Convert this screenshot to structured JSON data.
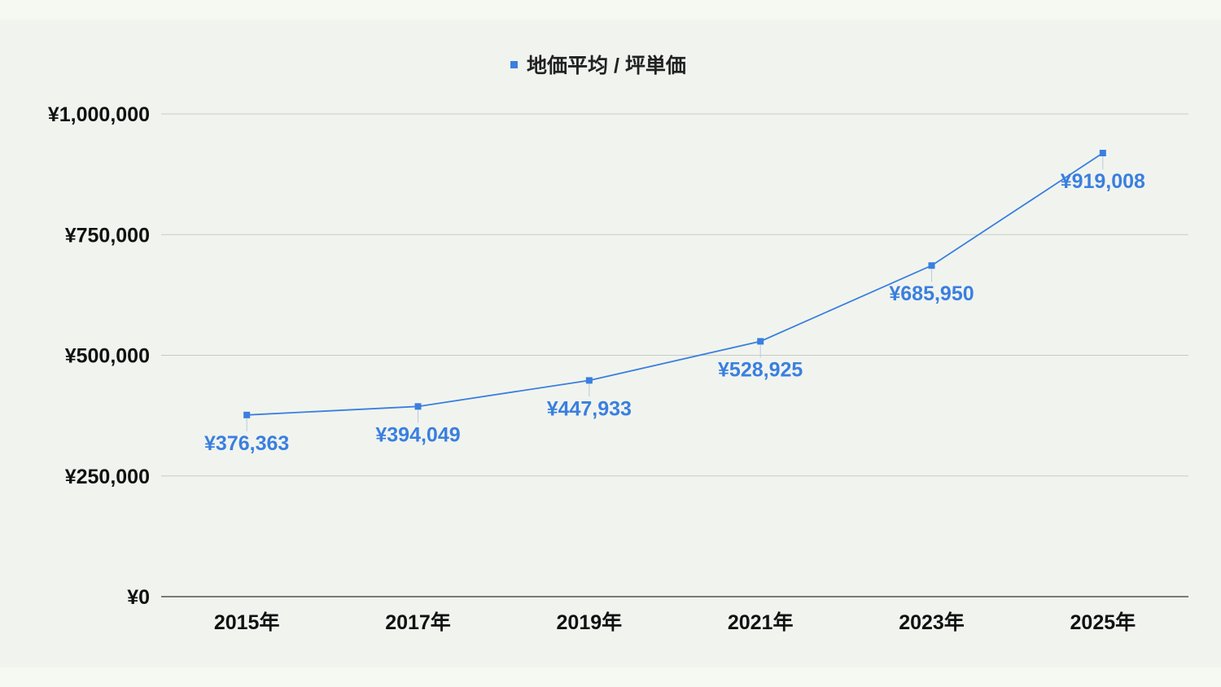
{
  "colors": {
    "series": "#3a7fe0",
    "grid": "#c8cbc4",
    "axis": "#333333"
  },
  "chart_data": {
    "type": "line",
    "legend": {
      "position": "top",
      "entries": [
        "地価平均 / 坪単価"
      ]
    },
    "x": [
      "2015年",
      "2017年",
      "2019年",
      "2021年",
      "2023年",
      "2025年"
    ],
    "series": [
      {
        "name": "地価平均 / 坪単価",
        "values": [
          376363,
          394049,
          447933,
          528925,
          685950,
          919008
        ],
        "labels": [
          "¥376,363",
          "¥394,049",
          "¥447,933",
          "¥528,925",
          "¥685,950",
          "¥919,008"
        ]
      }
    ],
    "ylim": [
      0,
      1000000
    ],
    "yticks": [
      0,
      250000,
      500000,
      750000,
      1000000
    ],
    "ytick_labels": [
      "¥0",
      "¥250,000",
      "¥500,000",
      "¥750,000",
      "¥1,000,000"
    ],
    "grid": true
  }
}
